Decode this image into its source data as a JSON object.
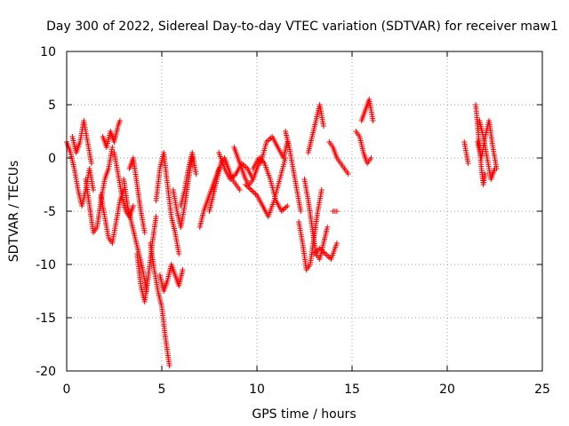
{
  "chart_data": {
    "type": "scatter",
    "title": "Day 300 of 2022, Sidereal Day-to-day VTEC variation (SDTVAR) for receiver maw1",
    "xlabel": "GPS time / hours",
    "ylabel": "SDTVAR / TECUs",
    "xlim": [
      0,
      25
    ],
    "ylim": [
      -20,
      10
    ],
    "x_ticks": [
      0,
      5,
      10,
      15,
      20,
      25
    ],
    "y_ticks": [
      -20,
      -15,
      -10,
      -5,
      0,
      5,
      10
    ],
    "grid": true,
    "marker": "+",
    "series": [
      {
        "name": "SDTVAR",
        "color": "#ff0000",
        "tracks": [
          {
            "x": [
              0.0,
              0.2,
              0.4,
              0.6,
              0.8,
              1.0,
              1.2,
              1.4
            ],
            "y": [
              1.5,
              0.5,
              -1.0,
              -3.0,
              -4.5,
              -3.0,
              -1.0,
              -3.0
            ]
          },
          {
            "x": [
              0.3,
              0.5,
              0.7,
              0.9,
              1.1,
              1.3
            ],
            "y": [
              2.0,
              0.5,
              1.5,
              3.5,
              1.5,
              -0.5
            ]
          },
          {
            "x": [
              1.0,
              1.2,
              1.4,
              1.6,
              1.8,
              2.0,
              2.2,
              2.4
            ],
            "y": [
              -2.0,
              -4.5,
              -7.0,
              -6.5,
              -4.0,
              -2.0,
              -1.0,
              1.0
            ]
          },
          {
            "x": [
              1.8,
              2.0,
              2.2,
              2.4,
              2.6,
              2.8,
              3.0
            ],
            "y": [
              -3.5,
              -5.5,
              -7.5,
              -8.0,
              -6.0,
              -4.0,
              -3.0
            ]
          },
          {
            "x": [
              1.9,
              2.1,
              2.3,
              2.5,
              2.7,
              2.8
            ],
            "y": [
              2.0,
              1.0,
              2.5,
              1.5,
              3.0,
              3.5
            ]
          },
          {
            "x": [
              2.5,
              2.7,
              2.9,
              3.1,
              3.3,
              3.5
            ],
            "y": [
              0.5,
              -1.5,
              -3.5,
              -5.0,
              -5.5,
              -4.5
            ]
          },
          {
            "x": [
              3.0,
              3.2,
              3.4,
              3.6,
              3.8,
              4.0,
              4.2
            ],
            "y": [
              -2.0,
              -4.5,
              -6.0,
              -7.5,
              -9.0,
              -10.5,
              -12.5
            ]
          },
          {
            "x": [
              3.3,
              3.5,
              3.7,
              3.9,
              4.1
            ],
            "y": [
              -1.0,
              0.0,
              -2.5,
              -5.0,
              -7.0
            ]
          },
          {
            "x": [
              3.7,
              3.9,
              4.1,
              4.3,
              4.5,
              4.7
            ],
            "y": [
              -9.0,
              -12.0,
              -13.5,
              -11.0,
              -8.0,
              -5.5
            ]
          },
          {
            "x": [
              4.4,
              4.6,
              4.8,
              5.0,
              5.2,
              5.4
            ],
            "y": [
              -8.0,
              -10.5,
              -12.5,
              -14.0,
              -17.0,
              -19.5
            ]
          },
          {
            "x": [
              4.7,
              4.9,
              5.1,
              5.3,
              5.5,
              5.7,
              5.9
            ],
            "y": [
              -4.0,
              -1.0,
              0.5,
              -2.5,
              -5.5,
              -7.0,
              -9.0
            ]
          },
          {
            "x": [
              4.9,
              5.1,
              5.3,
              5.5,
              5.7,
              5.9,
              6.1
            ],
            "y": [
              -11.0,
              -12.5,
              -11.5,
              -10.0,
              -11.0,
              -12.0,
              -10.5
            ]
          },
          {
            "x": [
              5.6,
              5.8,
              6.0,
              6.2,
              6.4,
              6.6
            ],
            "y": [
              -3.0,
              -5.0,
              -6.5,
              -4.5,
              -2.0,
              0.0
            ]
          },
          {
            "x": [
              6.0,
              6.2,
              6.4,
              6.6,
              6.8
            ],
            "y": [
              -4.5,
              -3.0,
              -1.0,
              0.5,
              -1.5
            ]
          },
          {
            "x": [
              7.0,
              7.2,
              7.4,
              7.6,
              7.8,
              8.0
            ],
            "y": [
              -6.5,
              -5.0,
              -4.0,
              -3.0,
              -2.0,
              -1.0
            ]
          },
          {
            "x": [
              7.5,
              7.7,
              7.9,
              8.1,
              8.3,
              8.5,
              8.7,
              8.9,
              9.1
            ],
            "y": [
              -5.0,
              -3.5,
              -2.0,
              -0.5,
              0.0,
              -1.0,
              -2.0,
              -2.5,
              -3.0
            ]
          },
          {
            "x": [
              8.0,
              8.3,
              8.6,
              8.9,
              9.2,
              9.5,
              9.8
            ],
            "y": [
              0.5,
              -1.0,
              -2.0,
              -1.5,
              -0.5,
              -1.0,
              -2.0
            ]
          },
          {
            "x": [
              8.8,
              9.0,
              9.2,
              9.4,
              9.6,
              9.8,
              10.0,
              10.2
            ],
            "y": [
              1.0,
              0.0,
              -1.0,
              -2.0,
              -2.5,
              -2.0,
              -1.0,
              0.0
            ]
          },
          {
            "x": [
              9.4,
              9.7,
              10.0,
              10.3,
              10.6,
              10.9,
              11.2,
              11.5
            ],
            "y": [
              -2.5,
              -3.0,
              -3.5,
              -4.5,
              -5.5,
              -4.0,
              -2.0,
              0.0
            ]
          },
          {
            "x": [
              9.8,
              10.1,
              10.4,
              10.7,
              11.0,
              11.3,
              11.6
            ],
            "y": [
              -1.0,
              0.0,
              -0.5,
              -2.0,
              -4.0,
              -5.0,
              -4.5
            ]
          },
          {
            "x": [
              10.2,
              10.5,
              10.8,
              11.1,
              11.4,
              11.6
            ],
            "y": [
              -0.5,
              1.5,
              2.0,
              1.0,
              0.0,
              1.5
            ]
          },
          {
            "x": [
              11.5,
              11.7,
              11.9,
              12.1,
              12.3
            ],
            "y": [
              2.5,
              1.0,
              -1.0,
              -3.0,
              -5.0
            ]
          },
          {
            "x": [
              12.2,
              12.4,
              12.6,
              12.8,
              13.0,
              13.2,
              13.4
            ],
            "y": [
              -6.0,
              -8.0,
              -10.5,
              -10.0,
              -7.5,
              -5.0,
              -3.0
            ]
          },
          {
            "x": [
              12.5,
              12.7,
              12.9,
              13.1,
              13.3,
              13.5,
              13.7
            ],
            "y": [
              -2.0,
              -4.0,
              -6.5,
              -9.0,
              -9.5,
              -8.0,
              -6.5
            ]
          },
          {
            "x": [
              12.7,
              12.9,
              13.1,
              13.3,
              13.5
            ],
            "y": [
              0.5,
              2.0,
              3.5,
              5.0,
              3.0
            ]
          },
          {
            "x": [
              13.0,
              13.3,
              13.6,
              13.9,
              14.2
            ],
            "y": [
              -9.0,
              -8.5,
              -9.0,
              -9.5,
              -8.0
            ]
          },
          {
            "x": [
              13.8,
              14.0,
              14.2,
              14.4,
              14.6,
              14.8
            ],
            "y": [
              1.5,
              1.0,
              0.0,
              -0.5,
              -1.0,
              -1.5
            ]
          },
          {
            "x": [
              14.0,
              14.2
            ],
            "y": [
              -5.0,
              -5.0
            ]
          },
          {
            "x": [
              15.2,
              15.4,
              15.6,
              15.8,
              16.0
            ],
            "y": [
              2.5,
              2.0,
              0.5,
              -0.5,
              0.0
            ]
          },
          {
            "x": [
              15.5,
              15.7,
              15.9,
              16.1
            ],
            "y": [
              3.5,
              4.5,
              5.5,
              3.5
            ]
          },
          {
            "x": [
              20.9,
              21.0,
              21.1
            ],
            "y": [
              1.5,
              0.5,
              -0.5
            ]
          },
          {
            "x": [
              21.5,
              21.6,
              21.7,
              21.8,
              21.9,
              22.0
            ],
            "y": [
              5.0,
              3.0,
              1.0,
              -1.0,
              -2.5,
              -1.5
            ]
          },
          {
            "x": [
              21.6,
              21.8,
              22.0,
              22.2,
              22.4,
              22.6
            ],
            "y": [
              1.5,
              0.0,
              2.0,
              3.5,
              1.0,
              -1.0
            ]
          },
          {
            "x": [
              21.7,
              21.9,
              22.1,
              22.3,
              22.5
            ],
            "y": [
              3.5,
              2.0,
              0.0,
              -2.0,
              -1.0
            ]
          }
        ]
      }
    ]
  }
}
